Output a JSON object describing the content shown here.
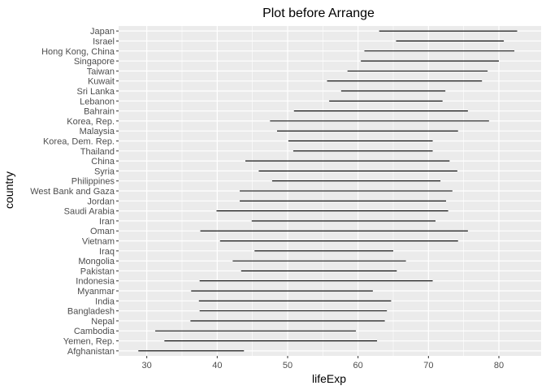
{
  "chart_data": {
    "type": "range",
    "title": "Plot before Arrange",
    "xlabel": "lifeExp",
    "ylabel": "country",
    "xlim": [
      26,
      86
    ],
    "x_ticks": [
      30,
      40,
      50,
      60,
      70,
      80
    ],
    "grid": true,
    "legend": "none",
    "colors": {
      "panel": "#ebebeb",
      "grid_major": "#ffffff",
      "segment": "#000000",
      "tick_label": "#4d4d4d"
    },
    "rows": [
      {
        "country": "Japan",
        "min": 63.0,
        "max": 82.6
      },
      {
        "country": "Israel",
        "min": 65.4,
        "max": 80.7
      },
      {
        "country": "Hong Kong, China",
        "min": 60.9,
        "max": 82.2
      },
      {
        "country": "Singapore",
        "min": 60.4,
        "max": 80.0
      },
      {
        "country": "Taiwan",
        "min": 58.5,
        "max": 78.4
      },
      {
        "country": "Kuwait",
        "min": 55.6,
        "max": 77.6
      },
      {
        "country": "Sri Lanka",
        "min": 57.6,
        "max": 72.4
      },
      {
        "country": "Lebanon",
        "min": 55.9,
        "max": 72.0
      },
      {
        "country": "Bahrain",
        "min": 50.9,
        "max": 75.6
      },
      {
        "country": "Korea, Rep.",
        "min": 47.5,
        "max": 78.6
      },
      {
        "country": "Malaysia",
        "min": 48.5,
        "max": 74.2
      },
      {
        "country": "Korea, Dem. Rep.",
        "min": 50.1,
        "max": 70.6
      },
      {
        "country": "Thailand",
        "min": 50.8,
        "max": 70.6
      },
      {
        "country": "China",
        "min": 44.0,
        "max": 73.0
      },
      {
        "country": "Syria",
        "min": 45.9,
        "max": 74.1
      },
      {
        "country": "Philippines",
        "min": 47.8,
        "max": 71.7
      },
      {
        "country": "West Bank and Gaza",
        "min": 43.2,
        "max": 73.4
      },
      {
        "country": "Jordan",
        "min": 43.2,
        "max": 72.5
      },
      {
        "country": "Saudi Arabia",
        "min": 39.9,
        "max": 72.8
      },
      {
        "country": "Iran",
        "min": 44.9,
        "max": 71.0
      },
      {
        "country": "Oman",
        "min": 37.6,
        "max": 75.6
      },
      {
        "country": "Vietnam",
        "min": 40.4,
        "max": 74.2
      },
      {
        "country": "Iraq",
        "min": 45.3,
        "max": 65.0
      },
      {
        "country": "Mongolia",
        "min": 42.2,
        "max": 66.8
      },
      {
        "country": "Pakistan",
        "min": 43.4,
        "max": 65.5
      },
      {
        "country": "Indonesia",
        "min": 37.5,
        "max": 70.6
      },
      {
        "country": "Myanmar",
        "min": 36.3,
        "max": 62.1
      },
      {
        "country": "India",
        "min": 37.4,
        "max": 64.7
      },
      {
        "country": "Bangladesh",
        "min": 37.5,
        "max": 64.1
      },
      {
        "country": "Nepal",
        "min": 36.2,
        "max": 63.8
      },
      {
        "country": "Cambodia",
        "min": 31.2,
        "max": 59.7
      },
      {
        "country": "Yemen, Rep.",
        "min": 32.5,
        "max": 62.7
      },
      {
        "country": "Afghanistan",
        "min": 28.8,
        "max": 43.8
      }
    ]
  }
}
